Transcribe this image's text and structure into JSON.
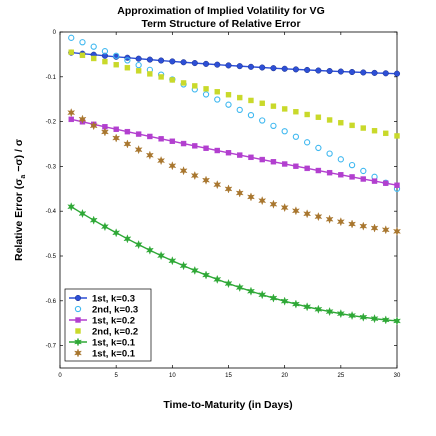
{
  "chart_data": {
    "type": "line",
    "title": "Approximation of Implied Volatility for VG",
    "subtitle": "Term Structure of Relative Error",
    "xlabel": "Time-to-Maturity (in Days)",
    "ylabel": "Relative Error   (σ  −σ) / σ",
    "ylabel_sub": "a",
    "xlim": [
      0,
      30
    ],
    "ylim": [
      -0.75,
      0
    ],
    "xticks": [
      0,
      5,
      10,
      15,
      20,
      25,
      30
    ],
    "yticks": [
      0,
      -0.1,
      -0.2,
      -0.3,
      -0.4,
      -0.5,
      -0.6,
      -0.7
    ],
    "ytick_labels": [
      "0",
      "-0.1",
      "-0.2",
      "-0.3",
      "-0.4",
      "-0.5",
      "-0.6",
      "-0.7"
    ],
    "grid": false,
    "legend_position": "bottom-left",
    "series": [
      {
        "name": "1st, k=0.3",
        "color": "#2d4fd6",
        "marker": "circle-filled",
        "line": true,
        "x_start": 1,
        "x_end": 30,
        "y_start": -0.046,
        "y_end": -0.093,
        "curve": 0.25
      },
      {
        "name": "2nd, k=0.3",
        "color": "#3fb8f0",
        "marker": "circle-open",
        "line": false,
        "x_start": 1,
        "x_end": 30,
        "y_start": -0.013,
        "y_end": -0.35,
        "curve": -0.08
      },
      {
        "name": "1st, k=0.2",
        "color": "#b23fcf",
        "marker": "square-filled",
        "line": true,
        "x_start": 1,
        "x_end": 30,
        "y_start": -0.195,
        "y_end": -0.342,
        "curve": 0.05
      },
      {
        "name": "2nd, k=0.2",
        "color": "#c9d92a",
        "marker": "square-filled",
        "line": false,
        "x_start": 1,
        "x_end": 30,
        "y_start": -0.045,
        "y_end": -0.232,
        "curve": 0.05
      },
      {
        "name": "1st, k=0.1",
        "color": "#2ea836",
        "marker": "star",
        "line": true,
        "x_start": 1,
        "x_end": 30,
        "y_start": -0.39,
        "y_end": -0.645,
        "curve": 0.38
      },
      {
        "name": "1st, k=0.1",
        "color": "#a8762e",
        "marker": "star",
        "line": false,
        "x_start": 1,
        "x_end": 30,
        "y_start": -0.18,
        "y_end": -0.445,
        "curve": 0.32
      }
    ]
  }
}
